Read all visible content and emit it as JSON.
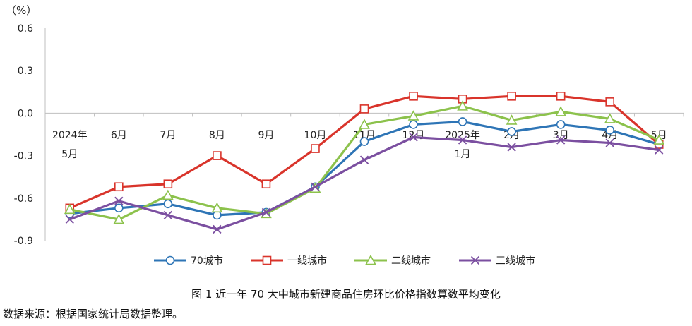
{
  "chart_data": {
    "type": "line",
    "unit_label": "（%）",
    "ylim": [
      -0.9,
      0.6
    ],
    "yticks": [
      0.6,
      0.3,
      0.0,
      -0.3,
      -0.6,
      -0.9
    ],
    "ytick_labels": [
      "0.6",
      "0.3",
      "0.0",
      "-0.3",
      "-0.6",
      "-0.9"
    ],
    "categories": [
      [
        "2024年",
        "5月"
      ],
      [
        "6月"
      ],
      [
        "7月"
      ],
      [
        "8月"
      ],
      [
        "9月"
      ],
      [
        "10月"
      ],
      [
        "11月"
      ],
      [
        "12月"
      ],
      [
        "2025年",
        "1月"
      ],
      [
        "2月"
      ],
      [
        "3月"
      ],
      [
        "4月"
      ],
      [
        "5月"
      ]
    ],
    "series": [
      {
        "name": "70城市",
        "color": "#2e75b6",
        "marker": "circle",
        "values": [
          -0.71,
          -0.67,
          -0.64,
          -0.72,
          -0.7,
          -0.52,
          -0.2,
          -0.08,
          -0.06,
          -0.13,
          -0.08,
          -0.12,
          -0.22
        ]
      },
      {
        "name": "一线城市",
        "color": "#d9342b",
        "marker": "square",
        "values": [
          -0.67,
          -0.52,
          -0.5,
          -0.3,
          -0.5,
          -0.25,
          0.03,
          0.12,
          0.1,
          0.12,
          0.12,
          0.08,
          -0.22
        ]
      },
      {
        "name": "二线城市",
        "color": "#8cc24c",
        "marker": "triangle",
        "values": [
          -0.68,
          -0.75,
          -0.58,
          -0.67,
          -0.71,
          -0.53,
          -0.08,
          -0.02,
          0.05,
          -0.05,
          0.01,
          -0.04,
          -0.19
        ]
      },
      {
        "name": "三线城市",
        "color": "#7b4fa0",
        "marker": "x",
        "values": [
          -0.75,
          -0.62,
          -0.72,
          -0.82,
          -0.7,
          -0.52,
          -0.33,
          -0.17,
          -0.19,
          -0.24,
          -0.19,
          -0.21,
          -0.26
        ]
      }
    ]
  },
  "caption": "图 1 近一年 70 大中城市新建商品住房环比价格指数算数平均变化",
  "source_note": "数据来源：根据国家统计局数据整理。"
}
